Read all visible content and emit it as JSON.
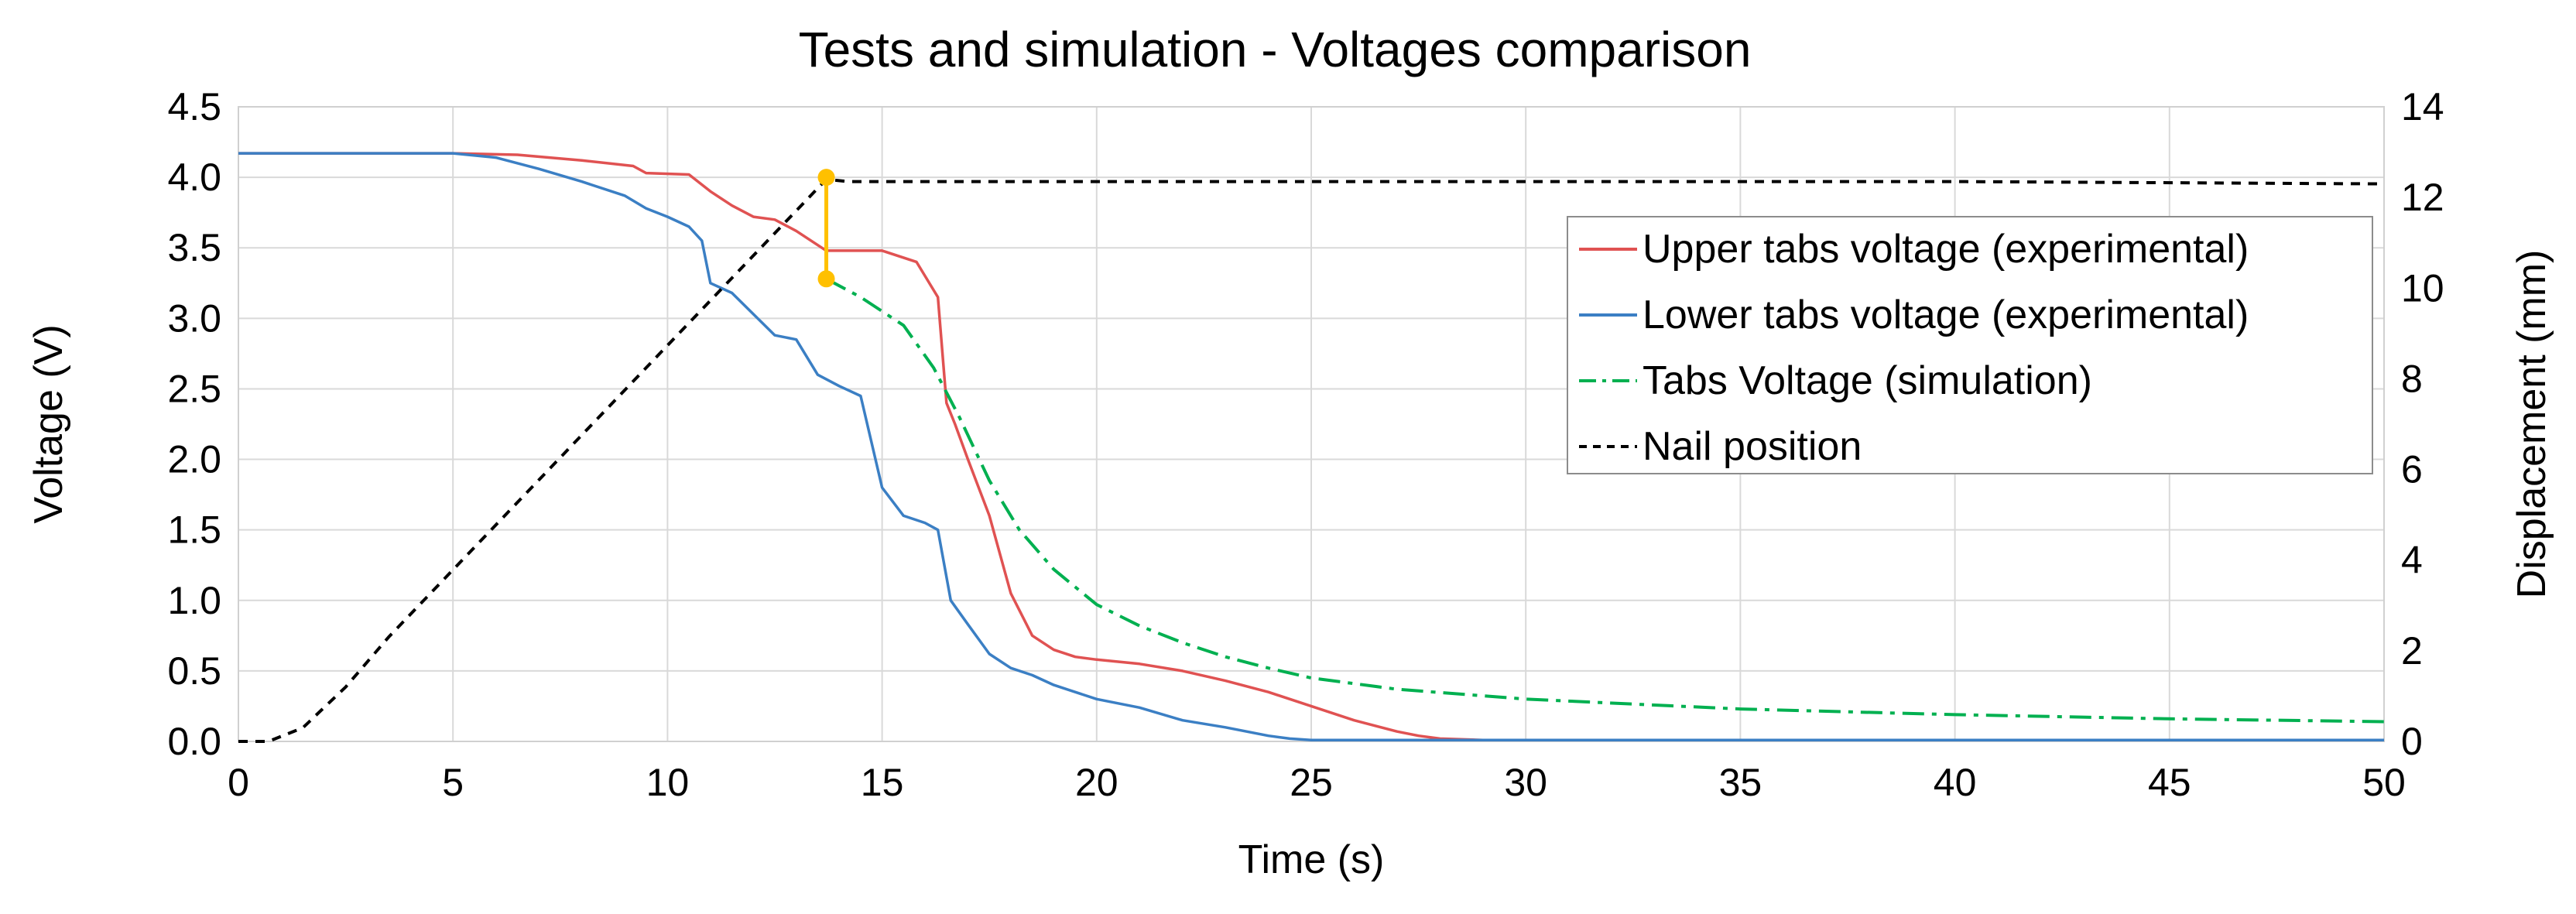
{
  "chart_data": {
    "type": "line",
    "title": "Tests and simulation - Voltages comparison",
    "xlabel": "Time (s)",
    "ylabel": "Voltage (V)",
    "y2label": "Displacement (mm)",
    "xlim": [
      0,
      50
    ],
    "ylim": [
      0,
      4.5
    ],
    "y2lim": [
      0,
      14
    ],
    "xticks": [
      0,
      5,
      10,
      15,
      20,
      25,
      30,
      35,
      40,
      45,
      50
    ],
    "yticks": [
      "0.0",
      "0.5",
      "1.0",
      "1.5",
      "2.0",
      "2.5",
      "3.0",
      "3.5",
      "4.0",
      "4.5"
    ],
    "y2ticks": [
      0,
      2,
      4,
      6,
      8,
      10,
      12,
      14
    ],
    "grid": true,
    "legend_position": "right",
    "series": [
      {
        "name": "Upper tabs voltage (experimental)",
        "axis": "left",
        "color": "#e05252",
        "style": "solid",
        "x": [
          0,
          5,
          6.5,
          8,
          9.2,
          9.5,
          10.5,
          11,
          11.5,
          12,
          12.5,
          13,
          13.7,
          14.2,
          15,
          15.8,
          16.3,
          16.5,
          16.7,
          17,
          17.5,
          18,
          18.5,
          19,
          19.5,
          20,
          21,
          22,
          23,
          24,
          25,
          26,
          27,
          27.5,
          28,
          29,
          30,
          35,
          40,
          45,
          50
        ],
        "y": [
          4.17,
          4.17,
          4.16,
          4.12,
          4.08,
          4.03,
          4.02,
          3.9,
          3.8,
          3.72,
          3.7,
          3.62,
          3.48,
          3.48,
          3.48,
          3.4,
          3.15,
          2.4,
          2.25,
          2.0,
          1.6,
          1.05,
          0.75,
          0.65,
          0.6,
          0.58,
          0.55,
          0.5,
          0.43,
          0.35,
          0.25,
          0.15,
          0.07,
          0.04,
          0.02,
          0.01,
          0.01,
          0.01,
          0.01,
          0.01,
          0.01
        ]
      },
      {
        "name": "Lower tabs voltage (experimental)",
        "axis": "left",
        "color": "#3b7fc4",
        "style": "solid",
        "x": [
          0,
          5,
          6,
          7,
          8,
          9,
          9.5,
          10,
          10.5,
          10.8,
          11,
          11.5,
          12,
          12.5,
          13,
          13.5,
          14,
          14.5,
          15,
          15.5,
          16,
          16.3,
          16.6,
          17,
          17.5,
          18,
          18.5,
          19,
          20,
          21,
          22,
          23,
          24,
          24.5,
          25,
          26,
          30,
          35,
          40,
          45,
          50
        ],
        "y": [
          4.17,
          4.17,
          4.14,
          4.06,
          3.97,
          3.87,
          3.78,
          3.72,
          3.65,
          3.55,
          3.25,
          3.18,
          3.03,
          2.88,
          2.85,
          2.6,
          2.52,
          2.45,
          1.8,
          1.6,
          1.55,
          1.5,
          1.0,
          0.83,
          0.62,
          0.52,
          0.47,
          0.4,
          0.3,
          0.24,
          0.15,
          0.1,
          0.04,
          0.02,
          0.01,
          0.01,
          0.01,
          0.01,
          0.01,
          0.01,
          0.01
        ]
      },
      {
        "name": "Tabs Voltage (simulation)",
        "axis": "left",
        "color": "#00b050",
        "style": "dash-dot",
        "x": [
          13.7,
          14.5,
          15.5,
          16.2,
          16.8,
          17.5,
          18.2,
          19,
          20,
          21,
          22,
          23,
          24,
          25,
          27,
          30,
          35,
          40,
          45,
          50
        ],
        "y": [
          3.28,
          3.15,
          2.95,
          2.65,
          2.3,
          1.85,
          1.5,
          1.22,
          0.97,
          0.82,
          0.7,
          0.6,
          0.52,
          0.45,
          0.37,
          0.3,
          0.23,
          0.19,
          0.16,
          0.14
        ]
      },
      {
        "name": "Nail position",
        "axis": "right",
        "color": "#000000",
        "style": "dash",
        "x": [
          0,
          0.7,
          1.5,
          2.5,
          3.5,
          13.7,
          14.2,
          20,
          30,
          40,
          50
        ],
        "y": [
          0,
          0,
          0.3,
          1.2,
          2.3,
          12.4,
          12.35,
          12.35,
          12.35,
          12.35,
          12.3
        ]
      }
    ],
    "annotation": {
      "type": "vertical-marker",
      "color": "#ffc000",
      "x": 13.7,
      "y_from": 3.28,
      "y_to": 4.0
    }
  }
}
